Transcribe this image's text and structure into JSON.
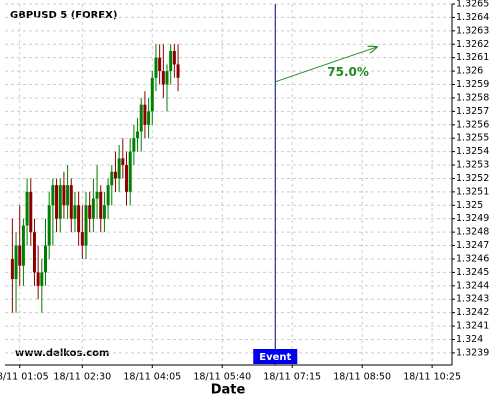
{
  "chart_data": {
    "type": "candlestick",
    "title": "GBPUSD 5 (FOREX)",
    "watermark": "www.delkos.com",
    "x_label": "Date",
    "x": [
      55,
      60,
      65,
      70,
      75,
      80,
      85,
      90,
      95,
      100,
      105,
      110,
      115,
      120,
      125,
      130,
      135,
      140,
      145,
      150,
      155,
      160,
      165,
      170,
      175,
      180,
      185,
      190,
      195,
      200,
      205,
      210,
      215,
      220,
      225,
      230,
      235,
      240,
      245,
      250,
      255,
      260,
      265,
      270,
      275,
      280
    ],
    "open": [
      1.3246,
      1.32445,
      1.3247,
      1.32455,
      1.32485,
      1.3251,
      1.3248,
      1.3245,
      1.3244,
      1.3245,
      1.3247,
      1.325,
      1.32515,
      1.3249,
      1.32515,
      1.325,
      1.32515,
      1.3249,
      1.325,
      1.3248,
      1.3247,
      1.325,
      1.3249,
      1.32505,
      1.3251,
      1.3249,
      1.325,
      1.32515,
      1.32525,
      1.3252,
      1.32535,
      1.3253,
      1.3251,
      1.3254,
      1.3255,
      1.32555,
      1.32575,
      1.3256,
      1.3257,
      1.32595,
      1.3261,
      1.326,
      1.3259,
      1.326,
      1.32615,
      1.32605
    ],
    "high": [
      1.3249,
      1.3248,
      1.325,
      1.3249,
      1.3252,
      1.3252,
      1.3249,
      1.3247,
      1.3246,
      1.3249,
      1.3251,
      1.3252,
      1.3252,
      1.3252,
      1.32525,
      1.3253,
      1.3252,
      1.3251,
      1.3251,
      1.325,
      1.3251,
      1.3251,
      1.3252,
      1.3253,
      1.32515,
      1.3251,
      1.3252,
      1.3253,
      1.3254,
      1.32545,
      1.3255,
      1.3254,
      1.3255,
      1.3256,
      1.32565,
      1.3258,
      1.32585,
      1.3258,
      1.326,
      1.3262,
      1.3262,
      1.3262,
      1.32605,
      1.3262,
      1.3262,
      1.3262
    ],
    "low": [
      1.3242,
      1.3242,
      1.3244,
      1.3244,
      1.3247,
      1.3247,
      1.3244,
      1.3243,
      1.3242,
      1.3244,
      1.3246,
      1.3247,
      1.3248,
      1.3248,
      1.3249,
      1.3249,
      1.3248,
      1.3248,
      1.3247,
      1.3246,
      1.3246,
      1.3248,
      1.3248,
      1.3249,
      1.3248,
      1.3248,
      1.3249,
      1.325,
      1.3251,
      1.3251,
      1.3252,
      1.325,
      1.325,
      1.3253,
      1.3254,
      1.3254,
      1.3255,
      1.3255,
      1.3256,
      1.32585,
      1.3259,
      1.3258,
      1.3257,
      1.3259,
      1.32595,
      1.32585
    ],
    "close": [
      1.32445,
      1.3247,
      1.32455,
      1.32485,
      1.3251,
      1.3248,
      1.3245,
      1.3244,
      1.3245,
      1.3247,
      1.325,
      1.32515,
      1.3249,
      1.32515,
      1.325,
      1.32515,
      1.3249,
      1.325,
      1.3248,
      1.3247,
      1.325,
      1.3249,
      1.32505,
      1.3251,
      1.3249,
      1.325,
      1.32515,
      1.32525,
      1.3252,
      1.32535,
      1.3253,
      1.3251,
      1.3254,
      1.3255,
      1.32555,
      1.32575,
      1.3256,
      1.3257,
      1.32595,
      1.3261,
      1.326,
      1.3259,
      1.326,
      1.32615,
      1.32605,
      1.32595
    ],
    "up_color": "#008000",
    "down_color": "#8b0000",
    "xlim": [
      45,
      652
    ],
    "ylim": [
      1.32381,
      1.3265
    ],
    "xticks": [
      {
        "value": 65,
        "label": "18/11 01:05"
      },
      {
        "value": 150,
        "label": "18/11 02:30"
      },
      {
        "value": 245,
        "label": "18/11 04:05"
      },
      {
        "value": 340,
        "label": "18/11 05:40"
      },
      {
        "value": 435,
        "label": "18/11 07:15"
      },
      {
        "value": 530,
        "label": "18/11 08:50"
      },
      {
        "value": 625,
        "label": "18/11 10:25"
      }
    ],
    "yticks": [
      1.3239,
      1.324,
      1.3241,
      1.3242,
      1.3243,
      1.3244,
      1.3245,
      1.3246,
      1.3247,
      1.3248,
      1.3249,
      1.325,
      1.3251,
      1.3252,
      1.3253,
      1.3254,
      1.3255,
      1.3256,
      1.3257,
      1.3258,
      1.3259,
      1.326,
      1.3261,
      1.3262,
      1.3263,
      1.3264,
      1.3265
    ],
    "grid": true,
    "event": {
      "x": 412,
      "label": "Event",
      "color": "#00008b",
      "label_background": "#0000ee"
    },
    "forecast": {
      "x": [
        412,
        550
      ],
      "y": [
        1.32592,
        1.32618
      ],
      "label": "75.0%",
      "color": "#228b22"
    }
  }
}
